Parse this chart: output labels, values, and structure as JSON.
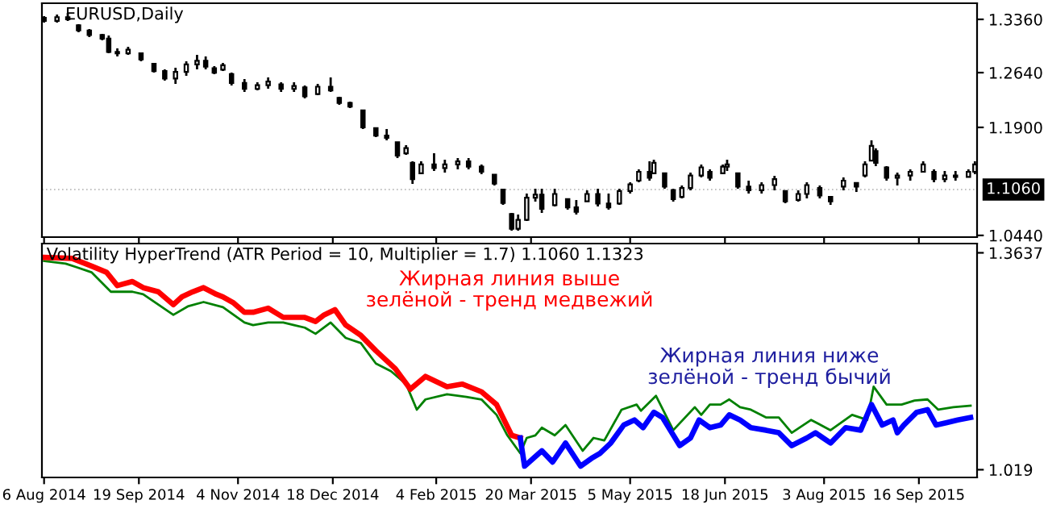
{
  "chart_data": [
    {
      "type": "candlestick",
      "title": "EURUSD,Daily",
      "x": [
        "2014-08-06",
        "2014-08-12",
        "2014-08-17",
        "2014-08-22",
        "2014-08-27",
        "2014-09-02",
        "2014-09-05",
        "2014-09-09",
        "2014-09-14",
        "2014-09-20",
        "2014-09-26",
        "2014-10-01",
        "2014-10-06",
        "2014-10-11",
        "2014-10-16",
        "2014-10-20",
        "2014-10-24",
        "2014-10-28",
        "2014-11-01",
        "2014-11-07",
        "2014-11-13",
        "2014-11-18",
        "2014-11-24",
        "2014-11-30",
        "2014-12-05",
        "2014-12-11",
        "2014-12-17",
        "2014-12-21",
        "2014-12-26",
        "2015-01-01",
        "2015-01-07",
        "2015-01-12",
        "2015-01-17",
        "2015-01-21",
        "2015-01-24",
        "2015-01-28",
        "2015-02-03",
        "2015-02-08",
        "2015-02-14",
        "2015-02-19",
        "2015-02-25",
        "2015-03-03",
        "2015-03-07",
        "2015-03-11",
        "2015-03-14",
        "2015-03-18",
        "2015-03-22",
        "2015-03-25",
        "2015-03-31",
        "2015-04-06",
        "2015-04-10",
        "2015-04-15",
        "2015-04-20",
        "2015-04-25",
        "2015-04-30",
        "2015-05-05",
        "2015-05-09",
        "2015-05-14",
        "2015-05-16",
        "2015-05-21",
        "2015-05-25",
        "2015-05-29",
        "2015-06-02",
        "2015-06-07",
        "2015-06-11",
        "2015-06-17",
        "2015-06-19",
        "2015-06-24",
        "2015-06-29",
        "2015-07-05",
        "2015-07-11",
        "2015-07-16",
        "2015-07-22",
        "2015-07-26",
        "2015-08-01",
        "2015-08-06",
        "2015-08-12",
        "2015-08-18",
        "2015-08-22",
        "2015-08-25",
        "2015-08-27",
        "2015-09-01",
        "2015-09-06",
        "2015-09-12",
        "2015-09-18",
        "2015-09-23",
        "2015-09-28",
        "2015-10-03",
        "2015-10-09",
        "2015-10-12"
      ],
      "ohlc": [
        [
          1.338,
          1.3404,
          1.3316,
          1.334
        ],
        [
          1.334,
          1.3425,
          1.3316,
          1.339
        ],
        [
          1.339,
          1.3447,
          1.3338,
          1.336
        ],
        [
          1.328,
          1.3295,
          1.3186,
          1.321
        ],
        [
          1.321,
          1.3229,
          1.312,
          1.315
        ],
        [
          1.315,
          1.3164,
          1.3077,
          1.31
        ],
        [
          1.31,
          1.3142,
          1.2902,
          1.292
        ],
        [
          1.292,
          1.2968,
          1.2859,
          1.29
        ],
        [
          1.29,
          1.2989,
          1.288,
          1.295
        ],
        [
          1.29,
          1.2902,
          1.2793,
          1.282
        ],
        [
          1.276,
          1.2771,
          1.2641,
          1.266
        ],
        [
          1.266,
          1.2684,
          1.2532,
          1.256
        ],
        [
          1.256,
          1.2706,
          1.2488,
          1.265
        ],
        [
          1.265,
          1.2793,
          1.2597,
          1.275
        ],
        [
          1.275,
          1.288,
          1.2684,
          1.28
        ],
        [
          1.28,
          1.2859,
          1.2684,
          1.272
        ],
        [
          1.27,
          1.2728,
          1.2619,
          1.264
        ],
        [
          1.268,
          1.2771,
          1.2662,
          1.274
        ],
        [
          1.262,
          1.2641,
          1.2466,
          1.25
        ],
        [
          1.25,
          1.2553,
          1.2379,
          1.242
        ],
        [
          1.242,
          1.251,
          1.2401,
          1.247
        ],
        [
          1.247,
          1.2575,
          1.2423,
          1.252
        ],
        [
          1.248,
          1.251,
          1.2379,
          1.242
        ],
        [
          1.242,
          1.251,
          1.2379,
          1.246
        ],
        [
          1.244,
          1.2466,
          1.2292,
          1.232
        ],
        [
          1.235,
          1.2488,
          1.2335,
          1.245
        ],
        [
          1.245,
          1.2575,
          1.2379,
          1.24
        ],
        [
          1.23,
          1.2314,
          1.2205,
          1.223
        ],
        [
          1.223,
          1.2248,
          1.2161,
          1.218
        ],
        [
          1.213,
          1.2139,
          1.1878,
          1.19
        ],
        [
          1.189,
          1.1899,
          1.1769,
          1.179
        ],
        [
          1.179,
          1.1878,
          1.1725,
          1.176
        ],
        [
          1.17,
          1.1703,
          1.1485,
          1.152
        ],
        [
          1.155,
          1.166,
          1.1529,
          1.162
        ],
        [
          1.142,
          1.1442,
          1.1136,
          1.12
        ],
        [
          1.128,
          1.1442,
          1.1267,
          1.14
        ],
        [
          1.14,
          1.1551,
          1.1311,
          1.135
        ],
        [
          1.135,
          1.1463,
          1.1289,
          1.14
        ],
        [
          1.14,
          1.1485,
          1.1333,
          1.144
        ],
        [
          1.144,
          1.1485,
          1.1333,
          1.137
        ],
        [
          1.137,
          1.1398,
          1.1267,
          1.13
        ],
        [
          1.126,
          1.1267,
          1.1115,
          1.114
        ],
        [
          1.106,
          1.1071,
          1.0853,
          1.088
        ],
        [
          1.073,
          1.0744,
          1.0504,
          1.053
        ],
        [
          1.053,
          1.0722,
          1.0504,
          1.065
        ],
        [
          1.065,
          1.1006,
          1.0635,
          1.095
        ],
        [
          1.095,
          1.1071,
          1.0897,
          1.099
        ],
        [
          1.099,
          1.1071,
          1.0744,
          1.08
        ],
        [
          1.085,
          1.1071,
          1.0831,
          1.1
        ],
        [
          1.093,
          1.094,
          1.0788,
          1.082
        ],
        [
          1.082,
          1.0918,
          1.0722,
          1.076
        ],
        [
          1.09,
          1.1049,
          1.0897,
          1.1
        ],
        [
          1.1,
          1.1071,
          1.0831,
          1.087
        ],
        [
          1.087,
          1.1006,
          1.0788,
          1.082
        ],
        [
          1.087,
          1.1071,
          1.0853,
          1.104
        ],
        [
          1.104,
          1.1158,
          1.1006,
          1.113
        ],
        [
          1.118,
          1.1333,
          1.1158,
          1.13
        ],
        [
          1.13,
          1.1442,
          1.118,
          1.122
        ],
        [
          1.128,
          1.1463,
          1.1267,
          1.142
        ],
        [
          1.128,
          1.1289,
          1.1071,
          1.11
        ],
        [
          1.105,
          1.1071,
          1.0897,
          1.093
        ],
        [
          1.096,
          1.1115,
          1.094,
          1.108
        ],
        [
          1.108,
          1.1289,
          1.1049,
          1.125
        ],
        [
          1.125,
          1.1398,
          1.1224,
          1.136
        ],
        [
          1.13,
          1.1333,
          1.118,
          1.122
        ],
        [
          1.128,
          1.1398,
          1.1267,
          1.137
        ],
        [
          1.137,
          1.1463,
          1.1311,
          1.14
        ],
        [
          1.128,
          1.1289,
          1.1071,
          1.11
        ],
        [
          1.11,
          1.118,
          1.1006,
          1.105
        ],
        [
          1.105,
          1.1158,
          1.1006,
          1.112
        ],
        [
          1.112,
          1.1245,
          1.1049,
          1.12
        ],
        [
          1.104,
          1.1049,
          1.0875,
          1.09
        ],
        [
          1.092,
          1.1049,
          1.0897,
          1.1
        ],
        [
          1.1,
          1.1158,
          1.094,
          1.112
        ],
        [
          1.108,
          1.1115,
          1.094,
          1.098
        ],
        [
          1.096,
          1.0962,
          1.0853,
          1.09
        ],
        [
          1.11,
          1.1224,
          1.1049,
          1.118
        ],
        [
          1.115,
          1.1158,
          1.1027,
          1.11
        ],
        [
          1.125,
          1.1442,
          1.1224,
          1.14
        ],
        [
          1.145,
          1.1725,
          1.1442,
          1.165
        ],
        [
          1.158,
          1.1616,
          1.1376,
          1.142
        ],
        [
          1.136,
          1.1376,
          1.118,
          1.122
        ],
        [
          1.122,
          1.1289,
          1.1115,
          1.125
        ],
        [
          1.125,
          1.1333,
          1.118,
          1.13
        ],
        [
          1.13,
          1.1442,
          1.1289,
          1.14
        ],
        [
          1.13,
          1.1333,
          1.1158,
          1.12
        ],
        [
          1.12,
          1.1311,
          1.1158,
          1.125
        ],
        [
          1.125,
          1.1311,
          1.118,
          1.123
        ],
        [
          1.123,
          1.1333,
          1.1224,
          1.13
        ],
        [
          1.13,
          1.1442,
          1.1267,
          1.14
        ]
      ],
      "xlim": [
        "2014-08-05",
        "2015-10-13"
      ],
      "xticks": [
        {
          "value": "2014-08-06",
          "label": null
        },
        {
          "value": "2014-09-19",
          "label": null
        },
        {
          "value": "2014-11-04",
          "label": null
        },
        {
          "value": "2014-12-18",
          "label": null
        },
        {
          "value": "2015-02-04",
          "label": null
        },
        {
          "value": "2015-03-20",
          "label": null
        },
        {
          "value": "2015-05-05",
          "label": null
        },
        {
          "value": "2015-06-18",
          "label": null
        },
        {
          "value": "2015-08-03",
          "label": null
        },
        {
          "value": "2015-09-16",
          "label": null
        }
      ],
      "ylim": [
        1.0417,
        1.3578
      ],
      "yticks": [
        {
          "value": 1.336,
          "label": "1.3360"
        },
        {
          "value": 1.264,
          "label": "1.2640"
        },
        {
          "value": 1.19,
          "label": "1.1900"
        },
        {
          "value": 1.044,
          "label": "1.0440"
        }
      ],
      "ref_lines": [
        {
          "axis": "y",
          "value": 1.106,
          "label": "1.1060"
        }
      ],
      "tick_labels": "y"
    },
    {
      "type": "line",
      "title": "Volatility HyperTrend (ATR Period = 10, Multiplier = 1.7) 1.1060 1.1323",
      "series": [
        {
          "color": "#008000",
          "x": [
            "2014-08-06",
            "2014-08-16",
            "2014-08-21",
            "2014-08-28",
            "2014-09-06",
            "2014-09-16",
            "2014-09-21",
            "2014-09-28",
            "2014-10-05",
            "2014-10-12",
            "2014-10-19",
            "2014-10-28",
            "2014-11-07",
            "2014-11-11",
            "2014-11-18",
            "2014-11-25",
            "2014-11-30",
            "2014-12-05",
            "2014-12-10",
            "2014-12-17",
            "2014-12-24",
            "2014-12-31",
            "2015-01-07",
            "2015-01-14",
            "2015-01-21",
            "2015-01-26",
            "2015-01-30",
            "2015-02-09",
            "2015-02-18",
            "2015-02-25",
            "2015-03-04",
            "2015-03-09",
            "2015-03-15",
            "2015-03-18",
            "2015-03-22",
            "2015-03-25",
            "2015-03-31",
            "2015-04-05",
            "2015-04-13",
            "2015-04-18",
            "2015-04-23",
            "2015-05-01",
            "2015-05-08",
            "2015-05-10",
            "2015-05-17",
            "2015-05-25",
            "2015-06-04",
            "2015-06-07",
            "2015-06-11",
            "2015-06-16",
            "2015-06-20",
            "2015-06-25",
            "2015-06-30",
            "2015-07-07",
            "2015-07-13",
            "2015-07-19",
            "2015-07-28",
            "2015-08-06",
            "2015-08-16",
            "2015-08-23",
            "2015-08-26",
            "2015-09-01",
            "2015-09-08",
            "2015-09-14",
            "2015-09-20",
            "2015-09-25",
            "2015-10-02",
            "2015-10-10"
          ],
          "values": [
            1.3507,
            1.3466,
            1.3409,
            1.3328,
            1.3018,
            1.3018,
            1.2977,
            1.2814,
            1.2651,
            1.279,
            1.2855,
            1.2774,
            1.2529,
            1.2488,
            1.2529,
            1.2529,
            1.2488,
            1.2448,
            1.235,
            1.2529,
            1.2284,
            1.2203,
            1.1877,
            1.1755,
            1.1551,
            1.1144,
            1.1307,
            1.1388,
            1.1347,
            1.1307,
            1.1062,
            1.0736,
            1.0451,
            1.0695,
            1.0736,
            1.0858,
            1.0736,
            1.0899,
            1.0491,
            1.0695,
            1.0655,
            1.1144,
            1.1225,
            1.1127,
            1.1364,
            1.0818,
            1.1184,
            1.1062,
            1.1225,
            1.1225,
            1.1307,
            1.1184,
            1.1144,
            1.1021,
            1.1021,
            1.0777,
            1.0981,
            1.0818,
            1.1062,
            1.0981,
            1.151,
            1.1225,
            1.1225,
            1.129,
            1.1307,
            1.1144,
            1.1184,
            1.1209
          ]
        },
        {
          "color": "#ff0000",
          "x": [
            "2014-08-06",
            "2014-08-19",
            "2014-08-28",
            "2014-09-04",
            "2014-09-09",
            "2014-09-16",
            "2014-09-21",
            "2014-09-28",
            "2014-10-05",
            "2014-10-09",
            "2014-10-14",
            "2014-10-19",
            "2014-10-25",
            "2014-10-28",
            "2014-11-02",
            "2014-11-07",
            "2014-11-11",
            "2014-11-18",
            "2014-11-25",
            "2014-12-05",
            "2014-12-10",
            "2014-12-14",
            "2014-12-19",
            "2014-12-24",
            "2014-12-31",
            "2015-01-07",
            "2015-01-16",
            "2015-01-23",
            "2015-01-30",
            "2015-02-09",
            "2015-02-16",
            "2015-02-25",
            "2015-03-04",
            "2015-03-11",
            "2015-03-15"
          ],
          "values": [
            1.3564,
            1.3548,
            1.3426,
            1.3328,
            1.3116,
            1.3181,
            1.3083,
            1.3018,
            1.2814,
            1.2937,
            1.3018,
            1.3083,
            1.2977,
            1.2937,
            1.2839,
            1.2692,
            1.2692,
            1.2757,
            1.2611,
            1.2611,
            1.2545,
            1.2651,
            1.2733,
            1.2488,
            1.2325,
            1.2081,
            1.1796,
            1.147,
            1.1673,
            1.151,
            1.1551,
            1.1429,
            1.1225,
            1.0736,
            1.0695
          ]
        },
        {
          "color": "#0000ff",
          "x": [
            "2015-03-15",
            "2015-03-17",
            "2015-03-21",
            "2015-03-25",
            "2015-03-30",
            "2015-04-05",
            "2015-04-12",
            "2015-04-17",
            "2015-04-21",
            "2015-04-26",
            "2015-05-02",
            "2015-05-07",
            "2015-05-11",
            "2015-05-16",
            "2015-05-20",
            "2015-05-28",
            "2015-06-02",
            "2015-06-06",
            "2015-06-11",
            "2015-06-16",
            "2015-06-20",
            "2015-06-25",
            "2015-06-30",
            "2015-07-07",
            "2015-07-13",
            "2015-07-19",
            "2015-07-26",
            "2015-07-30",
            "2015-08-06",
            "2015-08-13",
            "2015-08-20",
            "2015-08-25",
            "2015-08-30",
            "2015-09-04",
            "2015-09-06",
            "2015-09-09",
            "2015-09-15",
            "2015-09-20",
            "2015-09-24",
            "2015-09-29",
            "2015-10-04",
            "2015-10-10"
          ],
          "values": [
            1.0695,
            1.0247,
            1.0369,
            1.0491,
            1.0312,
            1.0614,
            1.0247,
            1.0369,
            1.0451,
            1.0614,
            1.0899,
            1.0981,
            1.0858,
            1.1103,
            1.1021,
            1.0573,
            1.0695,
            1.0981,
            1.0858,
            1.0899,
            1.1062,
            1.0981,
            1.0858,
            1.0818,
            1.0777,
            1.0573,
            1.0695,
            1.0777,
            1.0614,
            1.0858,
            1.0818,
            1.1225,
            1.0899,
            1.0981,
            1.0777,
            1.0899,
            1.1103,
            1.1144,
            1.0899,
            1.094,
            1.0981,
            1.1021
          ]
        }
      ],
      "xlim": [
        "2014-08-05",
        "2015-10-13"
      ],
      "xticks": [
        {
          "value": "2014-08-06",
          "label": "6 Aug 2014"
        },
        {
          "value": "2014-09-19",
          "label": "19 Sep 2014"
        },
        {
          "value": "2014-11-04",
          "label": "4 Nov 2014"
        },
        {
          "value": "2014-12-18",
          "label": "18 Dec 2014"
        },
        {
          "value": "2015-02-04",
          "label": "4 Feb 2015"
        },
        {
          "value": "2015-03-20",
          "label": "20 Mar 2015"
        },
        {
          "value": "2015-05-05",
          "label": "5 May 2015"
        },
        {
          "value": "2015-06-18",
          "label": "18 Jun 2015"
        },
        {
          "value": "2015-08-03",
          "label": "3 Aug 2015"
        },
        {
          "value": "2015-09-16",
          "label": "16 Sep 2015"
        }
      ],
      "ylim": [
        1.0067,
        1.3784
      ],
      "yticks": [
        1.3637,
        1.019
      ],
      "annotations": [
        "Жирная линия выше\nзелёной - тренд медвежий",
        "Жирная линия ниже\nзелёной - тренд бычий"
      ]
    }
  ]
}
